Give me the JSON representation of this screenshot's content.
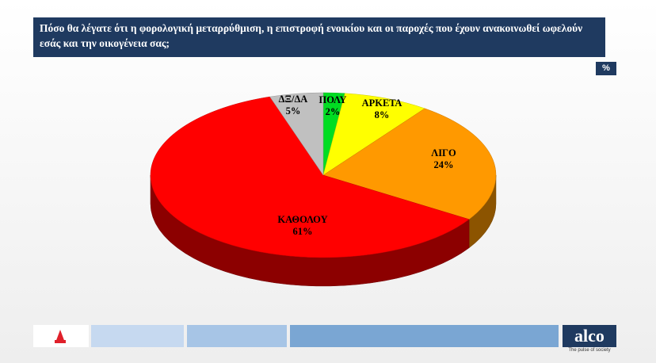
{
  "chart_data": {
    "type": "pie3d",
    "title": "Πόσο θα λέγατε ότι η φορολογική μεταρρύθμιση, η επιστροφή ενοικίου και  οι παροχές που έχουν ανακοινωθεί ωφελούν εσάς  και την οικογένεια σας;",
    "unit_badge": "%",
    "categories": [
      "ΠΟΛΥ",
      "ΑΡΚΕΤΑ",
      "ΛΙΓΟ",
      "ΚΑΘΟΛΟΥ",
      "ΔΞ/ΔΑ"
    ],
    "values": [
      2,
      8,
      24,
      61,
      5
    ],
    "value_labels": [
      "2%",
      "8%",
      "24%",
      "61%",
      "5%"
    ],
    "colors": [
      "#00dd22",
      "#ffff00",
      "#ff9900",
      "#ff0000",
      "#c0c0c0"
    ]
  },
  "footer": {
    "logo": "alco",
    "tagline": "The pulse of society"
  }
}
